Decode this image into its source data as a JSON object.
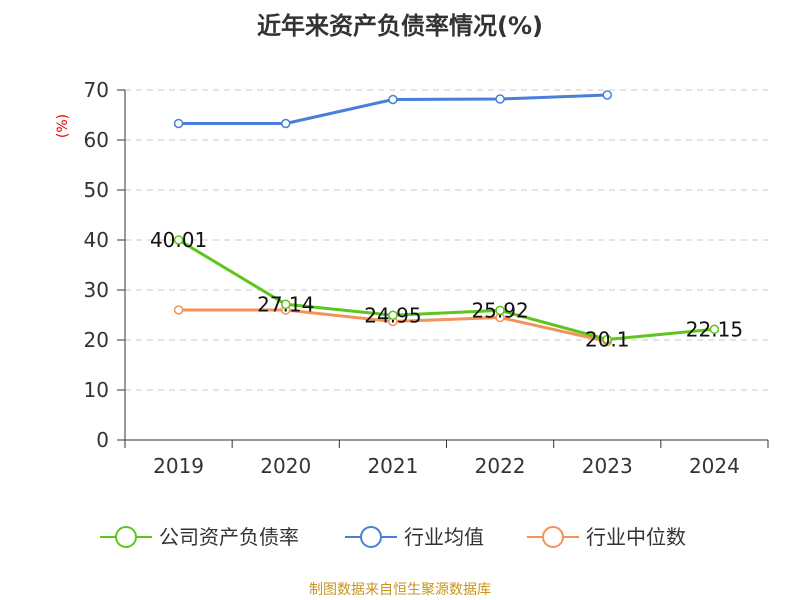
{
  "chart_data": {
    "type": "line",
    "title": "近年来资产负债率情况(%)",
    "ylabel": "(%)",
    "xlabel": "",
    "categories": [
      "2019",
      "2020",
      "2021",
      "2022",
      "2023",
      "2024"
    ],
    "ylim": [
      0,
      70
    ],
    "yticks": [
      "0",
      "10",
      "20",
      "30",
      "40",
      "50",
      "60",
      "70"
    ],
    "grid": true,
    "legend_position": "bottom",
    "series": [
      {
        "name": "公司资产负债率",
        "color": "#5ec41e",
        "values": [
          40.01,
          27.14,
          24.95,
          25.92,
          20.1,
          22.15
        ],
        "labels": [
          "40.01",
          "27.14",
          "24.95",
          "25.92",
          "20.1",
          "22.15"
        ]
      },
      {
        "name": "行业均值",
        "color": "#4a7fd9",
        "values": [
          63.3,
          63.3,
          68.1,
          68.2,
          69.0,
          null
        ]
      },
      {
        "name": "行业中位数",
        "color": "#f4925a",
        "values": [
          26.0,
          26.0,
          23.7,
          24.5,
          19.7,
          null
        ]
      }
    ],
    "source": "制图数据来自恒生聚源数据库"
  }
}
